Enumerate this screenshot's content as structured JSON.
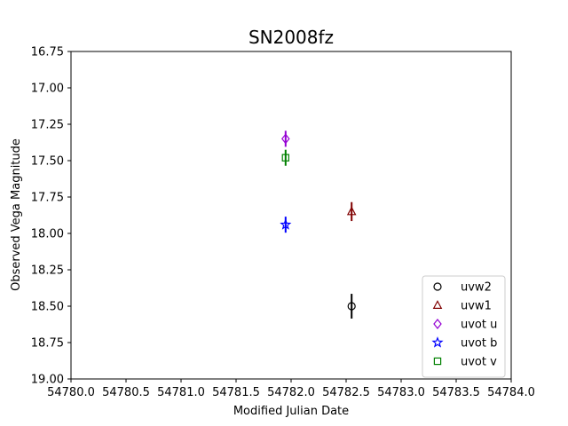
{
  "chart_data": {
    "type": "scatter",
    "title": "SN2008fz",
    "xlabel": "Modified Julian Date",
    "ylabel": "Observed Vega Magnitude",
    "xlim": [
      54780.0,
      54784.0
    ],
    "ylim": [
      19.0,
      16.75
    ],
    "y_inverted": true,
    "x_ticks": [
      54780.0,
      54780.5,
      54781.0,
      54781.5,
      54782.0,
      54782.5,
      54783.0,
      54783.5,
      54784.0
    ],
    "x_tick_labels": [
      "54780.0",
      "54780.5",
      "54781.0",
      "54781.5",
      "54782.0",
      "54782.5",
      "54783.0",
      "54783.5",
      "54784.0"
    ],
    "y_ticks": [
      16.75,
      17.0,
      17.25,
      17.5,
      17.75,
      18.0,
      18.25,
      18.5,
      18.75,
      19.0
    ],
    "y_tick_labels": [
      "16.75",
      "17.00",
      "17.25",
      "17.50",
      "17.75",
      "18.00",
      "18.25",
      "18.50",
      "18.75",
      "19.00"
    ],
    "grid": false,
    "legend_position": "lower-right",
    "series": [
      {
        "name": "uvw2",
        "marker": "circle",
        "color": "#000000",
        "points": [
          {
            "x": 54782.55,
            "y": 18.5,
            "err": 0.085
          }
        ]
      },
      {
        "name": "uvw1",
        "marker": "triangle",
        "color": "#800000",
        "points": [
          {
            "x": 54782.55,
            "y": 17.85,
            "err": 0.065
          }
        ]
      },
      {
        "name": "uvot u",
        "marker": "diamond",
        "color": "#9400d3",
        "points": [
          {
            "x": 54781.95,
            "y": 17.35,
            "err": 0.055
          }
        ]
      },
      {
        "name": "uvot b",
        "marker": "star",
        "color": "#0000ff",
        "points": [
          {
            "x": 54781.95,
            "y": 17.94,
            "err": 0.055
          }
        ]
      },
      {
        "name": "uvot v",
        "marker": "square",
        "color": "#008000",
        "points": [
          {
            "x": 54781.95,
            "y": 17.48,
            "err": 0.055
          }
        ]
      }
    ]
  }
}
